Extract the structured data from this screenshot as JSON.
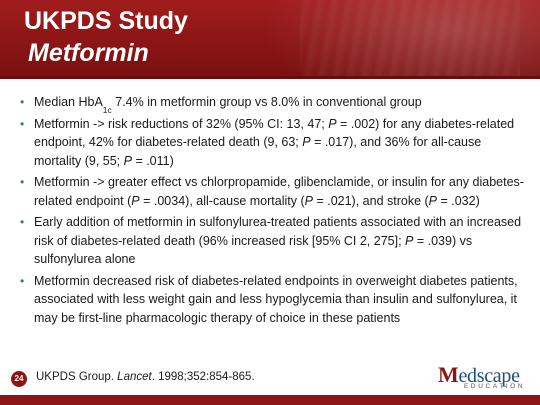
{
  "header": {
    "title": "UKPDS Study",
    "subtitle": "Metformin",
    "accent_color": "#8c1515"
  },
  "bullets": [
    {
      "parts": [
        {
          "t": "Median HbA"
        },
        {
          "t": "1c",
          "sub": true
        },
        {
          "t": " 7.4% in metformin group vs 8.0% in conventional group"
        }
      ]
    },
    {
      "parts": [
        {
          "t": "Metformin -> risk reductions of 32% (95% CI: 13, 47; "
        },
        {
          "t": "P",
          "i": true
        },
        {
          "t": " = .002) for any diabetes-related endpoint, 42% for diabetes-related death (9, 63; "
        },
        {
          "t": "P",
          "i": true
        },
        {
          "t": " = .017), and 36% for all-cause mortality (9, 55; "
        },
        {
          "t": "P",
          "i": true
        },
        {
          "t": " = .011)"
        }
      ]
    },
    {
      "parts": [
        {
          "t": "Metformin -> greater effect vs chlorpropamide, glibenclamide, or insulin for any diabetes-related endpoint ("
        },
        {
          "t": "P",
          "i": true
        },
        {
          "t": " = .0034), all-cause mortality ("
        },
        {
          "t": "P",
          "i": true
        },
        {
          "t": " = .021), and stroke ("
        },
        {
          "t": "P",
          "i": true
        },
        {
          "t": " = .032)"
        }
      ]
    },
    {
      "parts": [
        {
          "t": "Early addition of metformin in sulfonylurea-treated patients associated with an increased risk of diabetes-related death (96% increased risk [95% CI 2, 275]; "
        },
        {
          "t": "P",
          "i": true
        },
        {
          "t": " = .039) vs sulfonylurea alone"
        }
      ]
    },
    {
      "parts": [
        {
          "t": "Metformin decreased risk of diabetes-related endpoints in overweight diabetes patients, associated with less weight gain and less hypoglycemia than insulin and sulfonylurea, it may be first-line pharmacologic therapy of choice in these patients"
        }
      ]
    }
  ],
  "footer": {
    "page_number": "24",
    "citation_prefix": "UKPDS Group. ",
    "citation_journal": "Lancet",
    "citation_suffix": ". 1998;352:854-865."
  },
  "logo": {
    "word_first": "M",
    "word_rest": "edscape",
    "tagline": "EDUCATION",
    "icon": "medscape-education-logo"
  }
}
